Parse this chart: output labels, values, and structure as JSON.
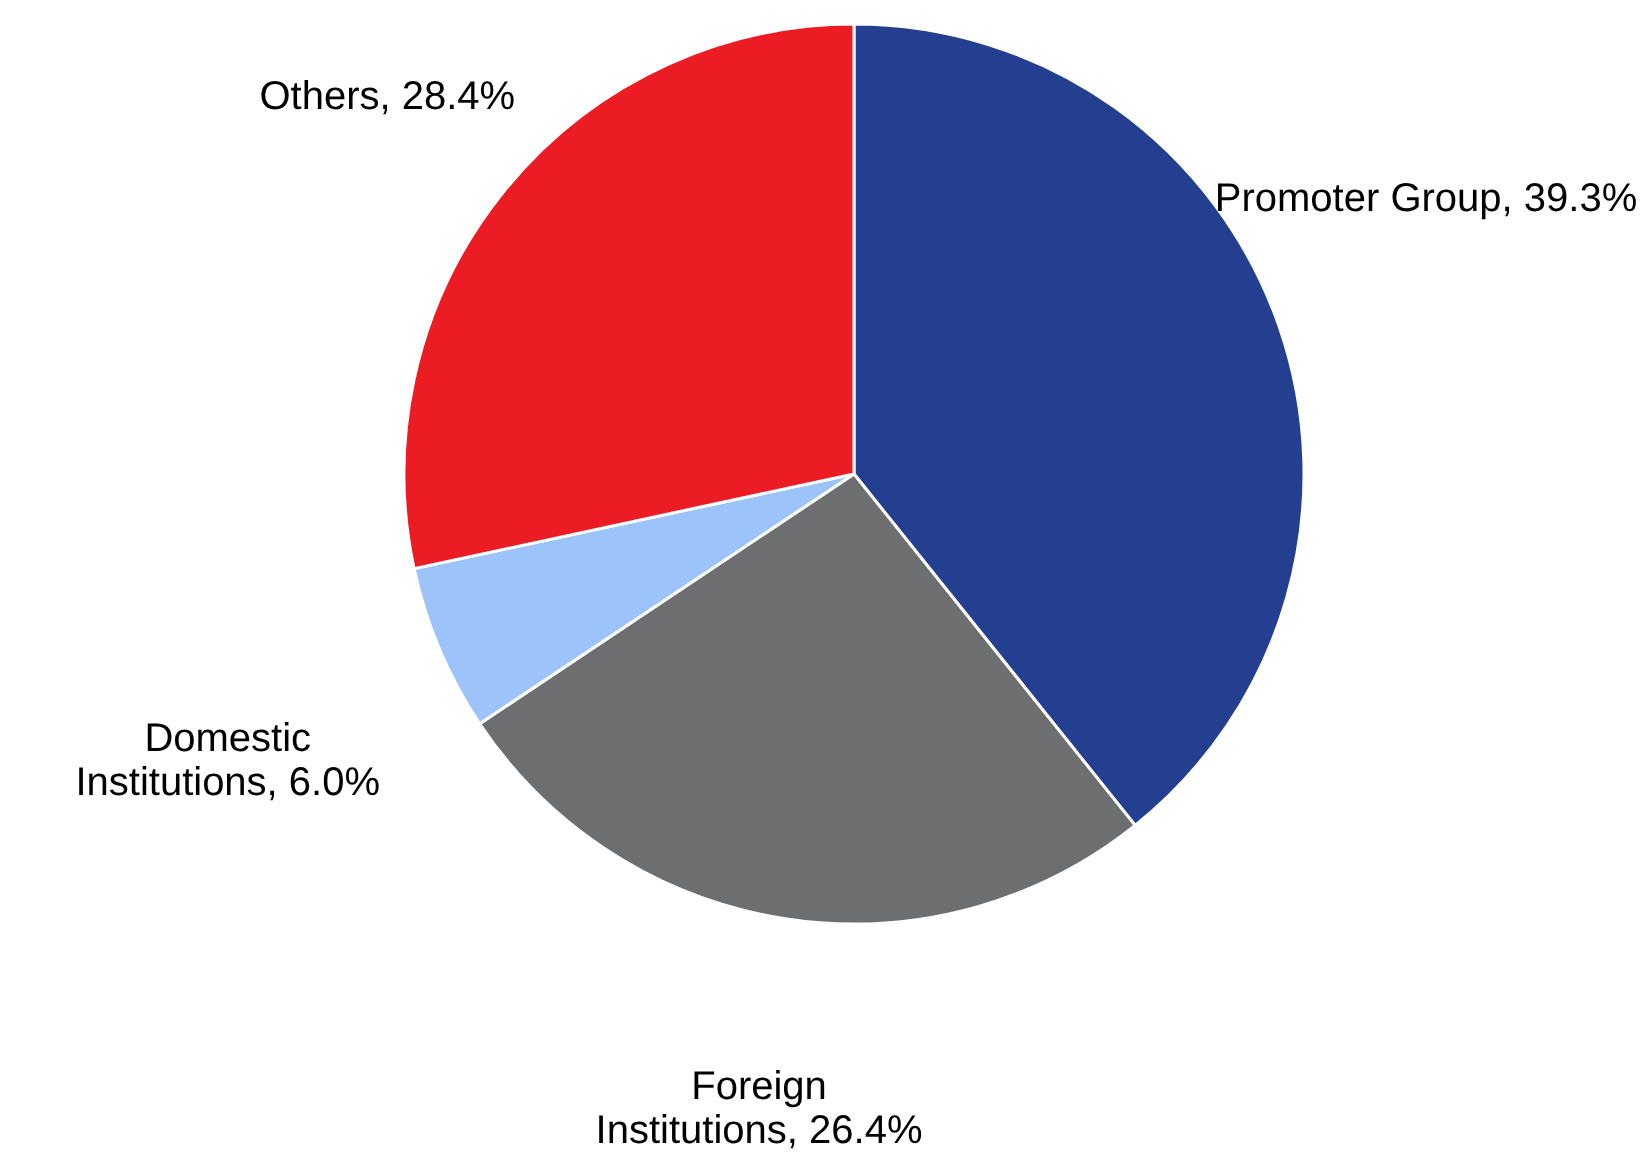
{
  "chart_data": {
    "type": "pie",
    "categories": [
      "Promoter Group",
      "Foreign Institutions",
      "Domestic Institutions",
      "Others"
    ],
    "values": [
      39.3,
      26.4,
      6.0,
      28.4
    ],
    "colors": [
      "#243f8f",
      "#6d6e70",
      "#9dc3fb",
      "#ec1c24"
    ],
    "value_labels": [
      "39.3%",
      "26.4%",
      "6.0%",
      "28.4%"
    ]
  }
}
